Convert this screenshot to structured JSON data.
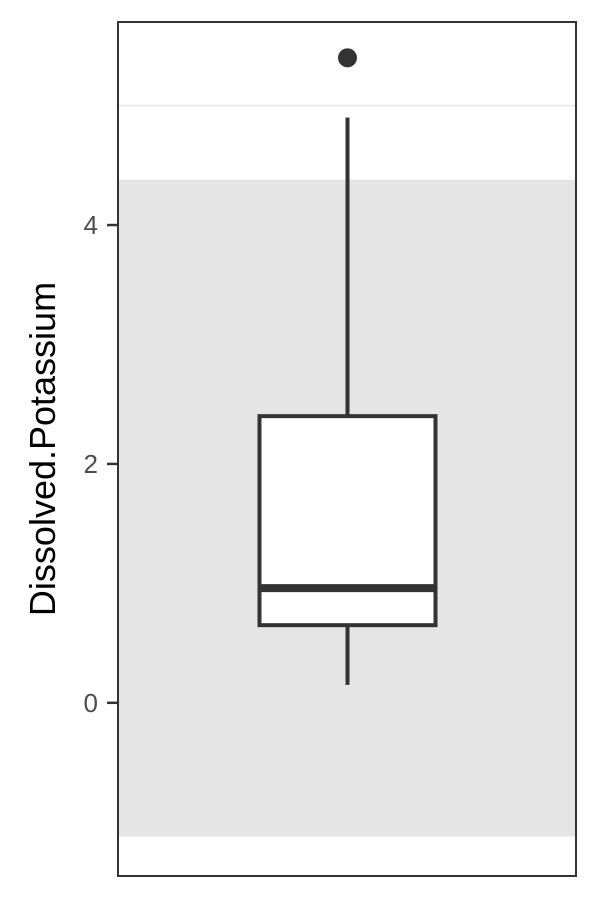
{
  "chart_data": {
    "type": "boxplot",
    "ylabel": "Dissolved.Potassium",
    "xlabel": "",
    "ylim": [
      -1.45,
      5.7
    ],
    "yticks": [
      0,
      2,
      4
    ],
    "grid": false,
    "shaded_band": {
      "from": -1.12,
      "to": 4.38,
      "color": "#e5e5e5"
    },
    "reference_line": {
      "y": 5.0,
      "color": "#ebebeb"
    },
    "box": {
      "whisker_low": 0.15,
      "q1": 0.65,
      "median": 0.96,
      "q3": 2.4,
      "whisker_high": 4.9,
      "outliers": [
        5.4
      ]
    },
    "colors": {
      "box_stroke": "#333333",
      "box_fill": "#ffffff",
      "panel_border": "#333333"
    }
  }
}
